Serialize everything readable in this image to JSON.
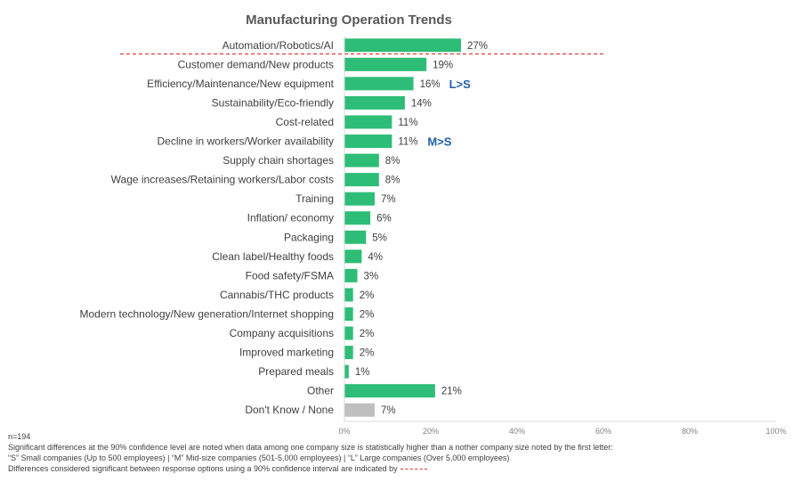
{
  "chart_data": {
    "type": "bar",
    "orientation": "horizontal",
    "title": "Manufacturing Operation Trends",
    "categories": [
      "Automation/Robotics/AI",
      "Customer demand/New products",
      "Efficiency/Maintenance/New equipment",
      "Sustainability/Eco-friendly",
      "Cost-related",
      "Decline in workers/Worker availability",
      "Supply chain shortages",
      "Wage increases/Retaining workers/Labor costs",
      "Training",
      "Inflation/ economy",
      "Packaging",
      "Clean label/Healthy foods",
      "Food safety/FSMA",
      "Cannabis/THC products",
      "Modern technology/New generation/Internet shopping",
      "Company acquisitions",
      "Improved marketing",
      "Prepared meals",
      "Other",
      "Don't Know /  None"
    ],
    "values": [
      27,
      19,
      16,
      14,
      11,
      11,
      8,
      8,
      7,
      6,
      5,
      4,
      3,
      2,
      2,
      2,
      2,
      1,
      21,
      7
    ],
    "value_labels": [
      "27%",
      "19%",
      "16%",
      "14%",
      "11%",
      "11%",
      "8%",
      "8%",
      "7%",
      "6%",
      "5%",
      "4%",
      "3%",
      "2%",
      "2%",
      "2%",
      "2%",
      "1%",
      "21%",
      "7%"
    ],
    "annotations": [
      {
        "category_index": 2,
        "text": "L>S"
      },
      {
        "category_index": 5,
        "text": "M>S"
      }
    ],
    "xlim": [
      0,
      100
    ],
    "xticks": [
      0,
      20,
      40,
      60,
      80,
      100
    ],
    "xtick_labels": [
      "0%",
      "20%",
      "40%",
      "60%",
      "80%",
      "100%"
    ],
    "grid": false,
    "significance_line_after_index": 0,
    "colors": {
      "bar": "#2dbd76",
      "bar_muted": "#bfbfbf",
      "annotation": "#1f5fa8",
      "significance_line": "#e03030",
      "axis": "#d9d9d9"
    }
  },
  "footnotes": {
    "sample": "n=194",
    "line1": "Significant differences at the 90% confidence level are noted when data among one company size is statistically higher than a nother company size noted by the first letter:",
    "line2": "“S” Small companies (Up to 500 employees) | “M” Mid-size companies (501-5,000 employees) | “L” Large companies (Over 5,000 employees)",
    "line3": "Differences considered significant between response options using a 90% confidence interval are indicated by"
  }
}
